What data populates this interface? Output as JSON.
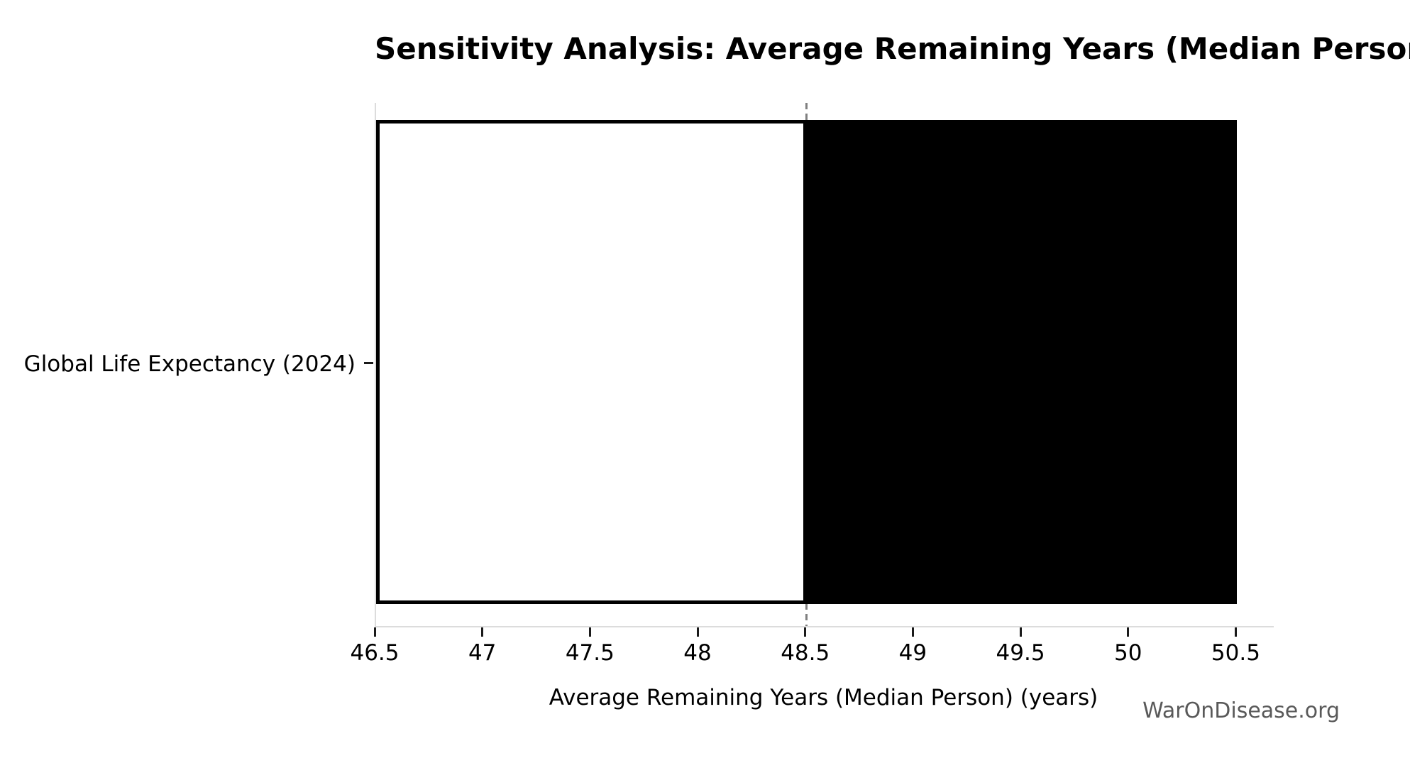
{
  "watermark": "WarOnDisease.org",
  "chart_data": {
    "type": "bar",
    "orientation": "horizontal",
    "subtype": "tornado-sensitivity",
    "title": "Sensitivity Analysis: Average Remaining Years (Median Person)",
    "xlabel": "Average Remaining Years (Median Person) (years)",
    "ylabel": "",
    "categories": [
      "Global Life Expectancy (2024)"
    ],
    "rows": [
      {
        "label": "Global Life Expectancy (2024)",
        "low": 46.5,
        "baseline": 48.5,
        "high": 50.5
      }
    ],
    "xlim": [
      46.5,
      50.67
    ],
    "x_ticks": [
      "46.5",
      "47",
      "47.5",
      "48",
      "48.5",
      "49",
      "49.5",
      "50",
      "50.5"
    ],
    "grid": false,
    "legend": false,
    "baseline_line": {
      "x": 48.5,
      "style": "dashed",
      "color": "#808080"
    },
    "colors": {
      "bar_low_fill": "#ffffff",
      "bar_high_fill": "#000000",
      "bar_edge": "#000000",
      "spine": "#dcdcdc",
      "tick": "#1a1a1a",
      "text": "#000000",
      "watermark": "#595959"
    }
  }
}
